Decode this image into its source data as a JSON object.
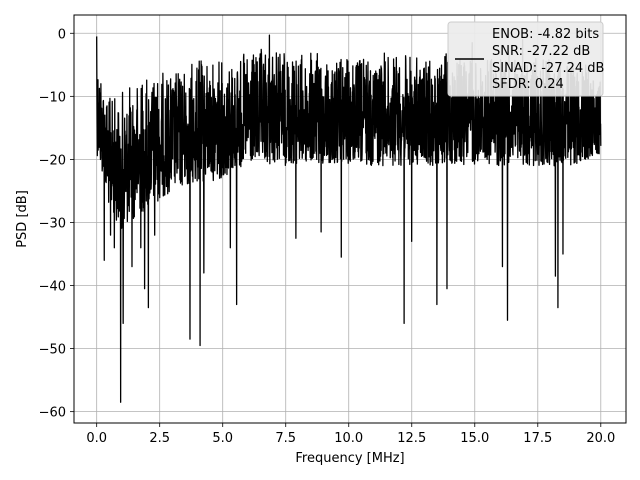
{
  "chart_data": {
    "type": "line",
    "title": "",
    "xlabel": "Frequency [MHz]",
    "ylabel": "PSD [dB]",
    "xlim": [
      -0.9,
      21.0
    ],
    "ylim": [
      -61.8,
      2.9
    ],
    "x_ticks": [
      0.0,
      2.5,
      5.0,
      7.5,
      10.0,
      12.5,
      15.0,
      17.5,
      20.0
    ],
    "x_tick_labels": [
      "0.0",
      "2.5",
      "5.0",
      "7.5",
      "10.0",
      "12.5",
      "15.0",
      "17.5",
      "20.0"
    ],
    "y_ticks": [
      0,
      -10,
      -20,
      -30,
      -40,
      -50,
      -60
    ],
    "y_tick_labels": [
      "0",
      "−10",
      "−20",
      "−30",
      "−40",
      "−50",
      "−60"
    ],
    "grid": true,
    "legend_position": "top-right",
    "legend_entries": [
      "ENOB: -4.82 bits",
      "SNR: -27.22 dB",
      "SINAD: -27.24 dB",
      "SFDR: 0.24"
    ],
    "series": [
      {
        "color": "#000000",
        "x_range": [
          0.0,
          20.0
        ],
        "envelope_x": [
          0,
          0.5,
          1,
          2,
          3,
          4,
          5,
          6,
          7,
          8,
          9,
          10,
          11,
          12,
          13,
          14,
          15,
          16,
          17,
          18,
          19,
          20
        ],
        "envelope_upper": [
          -1,
          -9,
          -8,
          -5,
          -5,
          -3,
          -3,
          -2,
          -1,
          -2,
          -2,
          -3,
          -2,
          -2,
          -3,
          -2,
          -3,
          -2,
          -3,
          -3,
          -3,
          -5
        ],
        "envelope_lower": [
          -18,
          -27,
          -30,
          -27,
          -24,
          -23,
          -22,
          -20,
          -20,
          -20,
          -20,
          -20,
          -20,
          -20,
          -20,
          -20,
          -20,
          -20,
          -20,
          -20,
          -20,
          -18
        ],
        "peaks": [
          {
            "x": 0.0,
            "y": -0.5
          },
          {
            "x": 6.85,
            "y": -0.3
          },
          {
            "x": 14.9,
            "y": -1.5
          },
          {
            "x": 16.9,
            "y": -1.0
          }
        ],
        "dips": [
          {
            "x": 0.3,
            "y": -36
          },
          {
            "x": 0.55,
            "y": -32
          },
          {
            "x": 0.7,
            "y": -34
          },
          {
            "x": 0.95,
            "y": -58.5
          },
          {
            "x": 1.05,
            "y": -46
          },
          {
            "x": 1.4,
            "y": -37
          },
          {
            "x": 1.75,
            "y": -34
          },
          {
            "x": 1.9,
            "y": -40.5
          },
          {
            "x": 2.05,
            "y": -43.5
          },
          {
            "x": 2.3,
            "y": -32
          },
          {
            "x": 3.7,
            "y": -48.5
          },
          {
            "x": 4.1,
            "y": -49.5
          },
          {
            "x": 4.25,
            "y": -38
          },
          {
            "x": 5.3,
            "y": -34
          },
          {
            "x": 5.55,
            "y": -43
          },
          {
            "x": 7.9,
            "y": -32.5
          },
          {
            "x": 8.9,
            "y": -31.5
          },
          {
            "x": 9.7,
            "y": -35.5
          },
          {
            "x": 12.2,
            "y": -46
          },
          {
            "x": 12.5,
            "y": -33
          },
          {
            "x": 13.5,
            "y": -43
          },
          {
            "x": 13.9,
            "y": -40.5
          },
          {
            "x": 16.1,
            "y": -37
          },
          {
            "x": 16.3,
            "y": -45.5
          },
          {
            "x": 18.2,
            "y": -38.5
          },
          {
            "x": 18.3,
            "y": -43.5
          },
          {
            "x": 18.5,
            "y": -35
          }
        ]
      }
    ]
  }
}
